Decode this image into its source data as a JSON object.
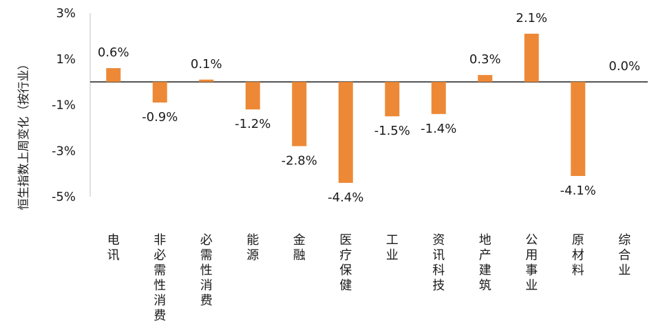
{
  "chart_data": {
    "type": "bar",
    "ylabel": "恒生指数上周变化（按行业）",
    "categories": [
      "电讯",
      "非必需性消费",
      "必需性消费",
      "能源",
      "金融",
      "医疗保健",
      "工业",
      "资讯科技",
      "地产建筑",
      "公用事业",
      "原材料",
      "综合业"
    ],
    "values": [
      0.6,
      -0.9,
      0.1,
      -1.2,
      -2.8,
      -4.4,
      -1.5,
      -1.4,
      0.3,
      2.1,
      -4.1,
      0.0
    ],
    "data_labels": [
      "0.6%",
      "-0.9%",
      "0.1%",
      "-1.2%",
      "-2.8%",
      "-4.4%",
      "-1.5%",
      "-1.4%",
      "0.3%",
      "2.1%",
      "-4.1%",
      "0.0%"
    ],
    "yticks": [
      "3%",
      "1%",
      "-1%",
      "-3%",
      "-5%"
    ],
    "ylim": [
      -5,
      3
    ],
    "grid": false,
    "bar_color": "#ED8936"
  }
}
